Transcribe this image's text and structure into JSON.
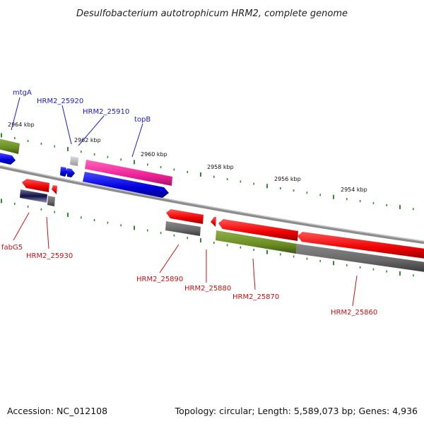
{
  "title": "Desulfobacterium autotrophicum HRM2, complete genome",
  "footer": {
    "accession": "Accession: NC_012108",
    "summary": "Topology: circular; Length: 5,589,073 bp; Genes: 4,936"
  },
  "ruler": {
    "kbp_labels": [
      "2964 kbp",
      "2962 kbp",
      "2960 kbp",
      "2958 kbp",
      "2956 kbp",
      "2954 kbp"
    ]
  },
  "genes_top": [
    "mtgA",
    "HRM2_25920",
    "HRM2_25910",
    "topB"
  ],
  "genes_bottom": [
    "fabG5",
    "HRM2_25930",
    "HRM2_25890",
    "HRM2_25880",
    "HRM2_25870",
    "HRM2_25860"
  ],
  "colors": {
    "ruler_tick": "#2e8b2e",
    "backbone": "#8c8c8c",
    "forward_cds": "#1a1aee",
    "topB": "#ee3399",
    "reverse_cds": "#ee1111",
    "olive": "#6b8e23",
    "gray": "#666666",
    "label_top": "#1a1acc",
    "label_bottom": "#cc1111"
  }
}
